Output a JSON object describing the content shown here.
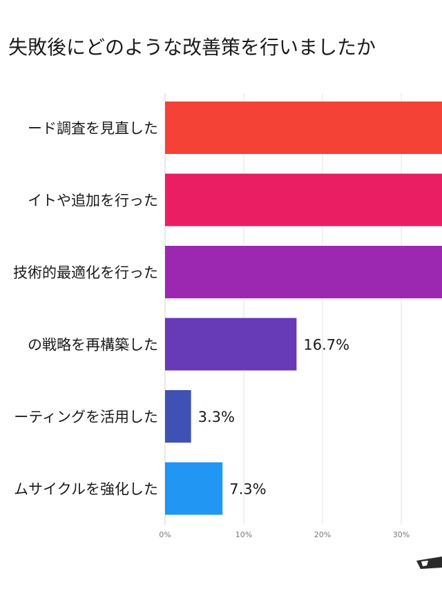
{
  "chart_data": {
    "type": "bar",
    "orientation": "horizontal",
    "title": "失敗後にどのような改善策を行いましたか",
    "categories": [
      "ード調査を見直した",
      "イトや追加を行った",
      "技術的最適化を行った",
      "の戦略を再構築した",
      "ーティングを活用した",
      "ムサイクルを強化した"
    ],
    "values": [
      null,
      null,
      null,
      16.7,
      3.3,
      7.3
    ],
    "value_labels": [
      "",
      "",
      "",
      "16.7%",
      "3.3%",
      "7.3%"
    ],
    "colors": [
      "#f44336",
      "#e91e63",
      "#9c27b0",
      "#673ab7",
      "#3f51b5",
      "#2196f3"
    ],
    "xlim": [
      0,
      50
    ],
    "xticks": [
      "0%",
      "10%",
      "20%",
      "30%"
    ],
    "grid": true
  }
}
